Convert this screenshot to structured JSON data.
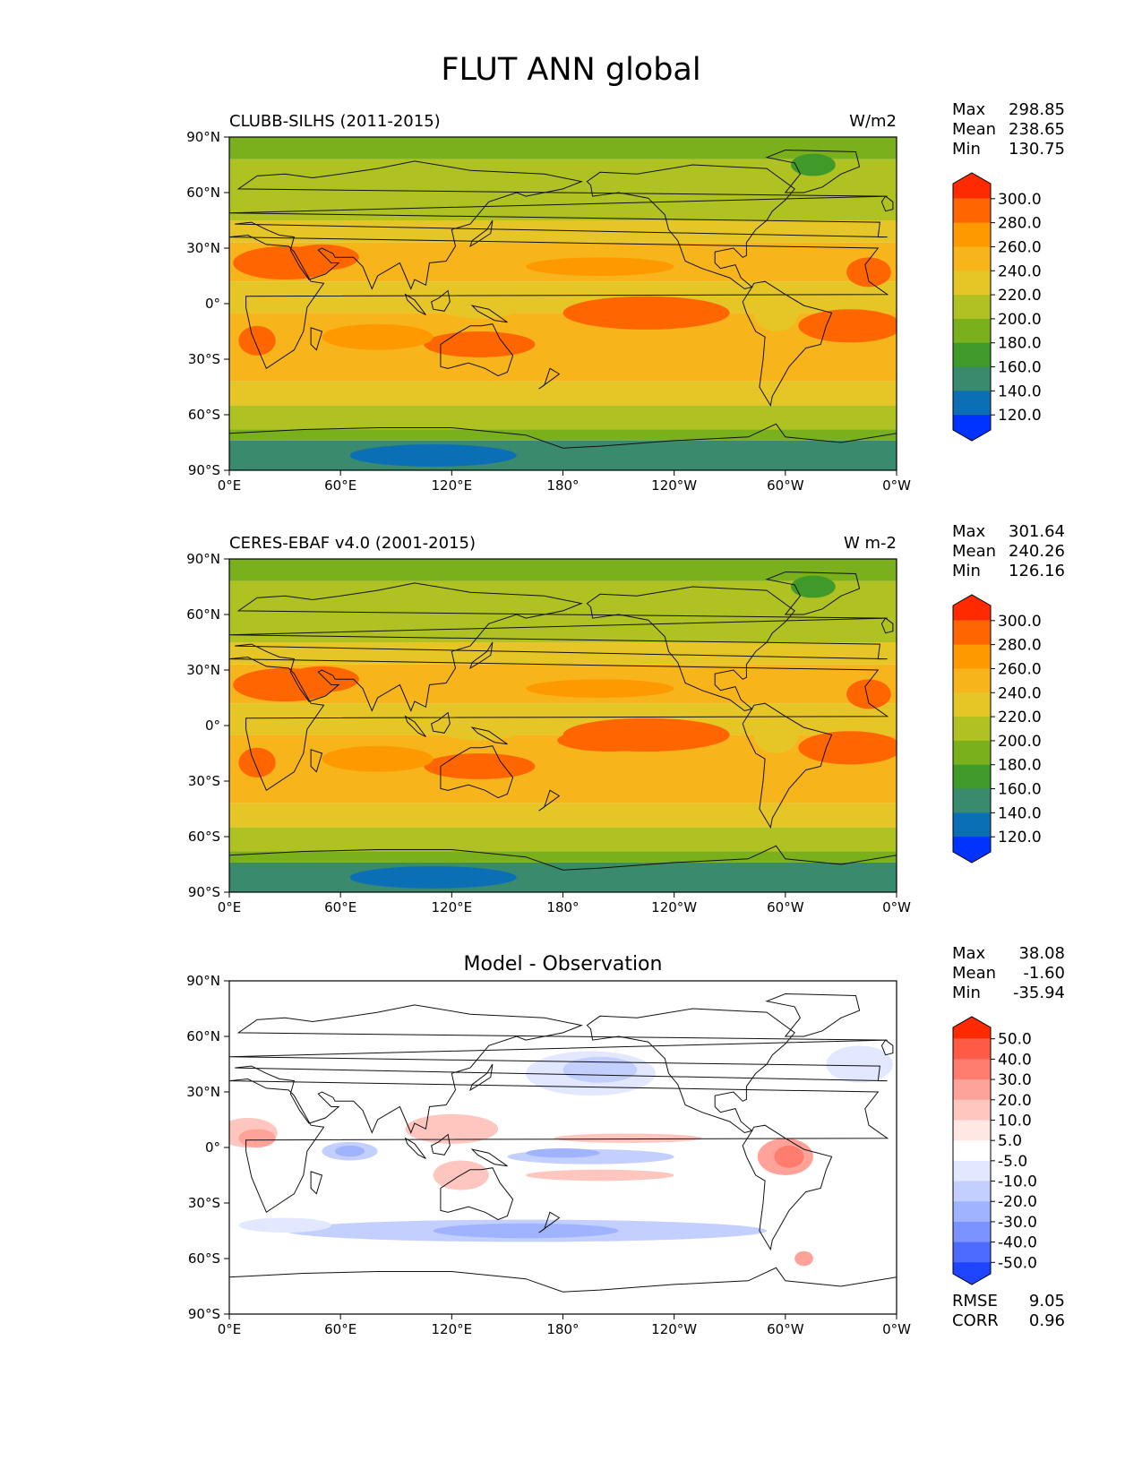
{
  "figure": {
    "title": "FLUT ANN global"
  },
  "chart_data": [
    {
      "type": "heatmap",
      "panel_title": "CLUBB-SILHS (2011-2015)",
      "units": "W/m2",
      "stats": {
        "max": "298.85",
        "mean": "238.65",
        "min": "130.75"
      },
      "stat_labels": [
        "Max",
        "Mean",
        "Min"
      ],
      "ylim": [
        -90,
        90
      ],
      "xlim": [
        0,
        360
      ],
      "y_ticks": [
        "90°N",
        "60°N",
        "30°N",
        "0°",
        "30°S",
        "60°S",
        "90°S"
      ],
      "x_ticks": [
        "0°E",
        "60°E",
        "120°E",
        "180°",
        "120°W",
        "60°W",
        "0°W"
      ],
      "colorbar": {
        "labels": [
          "300.0",
          "280.0",
          "260.0",
          "240.0",
          "220.0",
          "200.0",
          "180.0",
          "160.0",
          "140.0",
          "120.0"
        ],
        "colors": [
          "#ff2a00",
          "#ff6600",
          "#ff9900",
          "#f7b51b",
          "#e6c627",
          "#b0c122",
          "#7bb01d",
          "#3f9a2a",
          "#3a8a6e",
          "#0b6fb6",
          "#0033ff"
        ]
      },
      "zonal_mean_w_m2": [
        [
          90,
          170
        ],
        [
          75,
          195
        ],
        [
          60,
          200
        ],
        [
          45,
          215
        ],
        [
          30,
          245
        ],
        [
          15,
          255
        ],
        [
          0,
          240
        ],
        [
          -15,
          262
        ],
        [
          -30,
          250
        ],
        [
          -45,
          225
        ],
        [
          -60,
          205
        ],
        [
          -70,
          175
        ],
        [
          -80,
          150
        ],
        [
          -90,
          158
        ]
      ]
    },
    {
      "type": "heatmap",
      "panel_title": "CERES-EBAF v4.0 (2001-2015)",
      "units": "W m-2",
      "stats": {
        "max": "301.64",
        "mean": "240.26",
        "min": "126.16"
      },
      "stat_labels": [
        "Max",
        "Mean",
        "Min"
      ],
      "ylim": [
        -90,
        90
      ],
      "xlim": [
        0,
        360
      ],
      "y_ticks": [
        "90°N",
        "60°N",
        "30°N",
        "0°",
        "30°S",
        "60°S",
        "90°S"
      ],
      "x_ticks": [
        "0°E",
        "60°E",
        "120°E",
        "180°",
        "120°W",
        "60°W",
        "0°W"
      ],
      "colorbar": {
        "labels": [
          "300.0",
          "280.0",
          "260.0",
          "240.0",
          "220.0",
          "200.0",
          "180.0",
          "160.0",
          "140.0",
          "120.0"
        ],
        "colors": [
          "#ff2a00",
          "#ff6600",
          "#ff9900",
          "#f7b51b",
          "#e6c627",
          "#b0c122",
          "#7bb01d",
          "#3f9a2a",
          "#3a8a6e",
          "#0b6fb6",
          "#0033ff"
        ]
      },
      "zonal_mean_w_m2": [
        [
          90,
          172
        ],
        [
          75,
          192
        ],
        [
          60,
          202
        ],
        [
          45,
          218
        ],
        [
          30,
          250
        ],
        [
          15,
          258
        ],
        [
          0,
          245
        ],
        [
          -15,
          262
        ],
        [
          -30,
          252
        ],
        [
          -45,
          228
        ],
        [
          -60,
          205
        ],
        [
          -70,
          178
        ],
        [
          -80,
          148
        ],
        [
          -90,
          160
        ]
      ]
    },
    {
      "type": "heatmap",
      "panel_title": "Model - Observation",
      "units": "",
      "stats": {
        "max": "38.08",
        "mean": "-1.60",
        "min": "-35.94"
      },
      "stat_labels": [
        "Max",
        "Mean",
        "Min"
      ],
      "metrics": {
        "rmse": "9.05",
        "corr": "0.96"
      },
      "metric_labels": [
        "RMSE",
        "CORR"
      ],
      "ylim": [
        -90,
        90
      ],
      "xlim": [
        0,
        360
      ],
      "y_ticks": [
        "90°N",
        "60°N",
        "30°N",
        "0°",
        "30°S",
        "60°S",
        "90°S"
      ],
      "x_ticks": [
        "0°E",
        "60°E",
        "120°E",
        "180°",
        "120°W",
        "60°W",
        "0°W"
      ],
      "colorbar": {
        "labels": [
          "50.0",
          "40.0",
          "30.0",
          "20.0",
          "10.0",
          "5.0",
          "-5.0",
          "-10.0",
          "-20.0",
          "-30.0",
          "-40.0",
          "-50.0"
        ],
        "colors": [
          "#ff2a00",
          "#ff5a46",
          "#ff7d6e",
          "#ffa39a",
          "#ffc6c0",
          "#ffe7e4",
          "#ffffff",
          "#e2e8ff",
          "#c3cfff",
          "#a0b3ff",
          "#7b93ff",
          "#4d6cff",
          "#1f44ff"
        ]
      }
    }
  ]
}
